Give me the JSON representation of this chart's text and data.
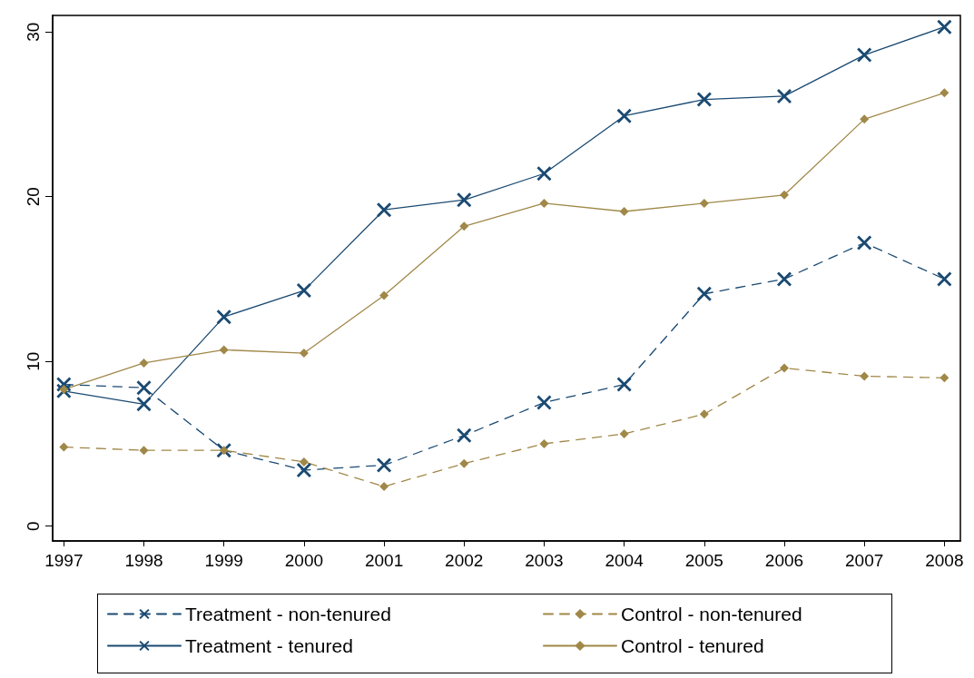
{
  "chart_data": {
    "type": "line",
    "x": [
      1997,
      1998,
      1999,
      2000,
      2001,
      2002,
      2003,
      2004,
      2005,
      2006,
      2007,
      2008
    ],
    "series": [
      {
        "name": "Treatment - non-tenured",
        "color": "#1a4a72",
        "marker": "cross",
        "line_style": "dashed",
        "values": [
          8.6,
          8.4,
          4.6,
          3.4,
          3.7,
          5.5,
          7.5,
          8.6,
          14.1,
          15.0,
          17.2,
          15.0
        ]
      },
      {
        "name": "Control - non-tenured",
        "color": "#a08848",
        "marker": "diamond",
        "line_style": "dashed",
        "values": [
          4.8,
          4.6,
          4.6,
          3.9,
          2.4,
          3.8,
          5.0,
          5.6,
          6.8,
          9.6,
          9.1,
          9.0
        ]
      },
      {
        "name": "Treatment - tenured",
        "color": "#1a4a72",
        "marker": "cross",
        "line_style": "solid",
        "values": [
          8.2,
          7.4,
          12.7,
          14.3,
          19.2,
          19.8,
          21.4,
          24.9,
          25.9,
          26.1,
          28.6,
          30.3
        ]
      },
      {
        "name": "Control - tenured",
        "color": "#a08848",
        "marker": "diamond",
        "line_style": "solid",
        "values": [
          8.3,
          9.9,
          10.7,
          10.5,
          14.0,
          18.2,
          19.6,
          19.1,
          19.6,
          20.1,
          24.7,
          26.3
        ]
      }
    ],
    "xlim": [
      1996.86,
      2008.2
    ],
    "xticks": [
      1997,
      1998,
      1999,
      2000,
      2001,
      2002,
      2003,
      2004,
      2005,
      2006,
      2007,
      2008
    ],
    "ylim": [
      -0.9,
      31
    ],
    "yticks": [
      0,
      10,
      20,
      30
    ],
    "grid": false,
    "legend": "bottom"
  }
}
